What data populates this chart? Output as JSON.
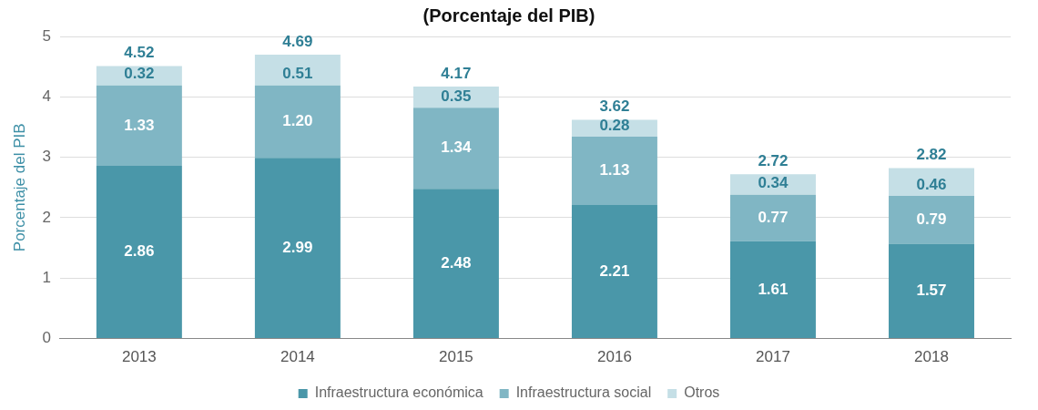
{
  "chart_data": {
    "type": "bar",
    "title": "(Porcentaje del PIB)",
    "ylabel": "Porcentaje del PIB",
    "categories": [
      "2013",
      "2014",
      "2015",
      "2016",
      "2017",
      "2018"
    ],
    "series": [
      {
        "name": "Infraestructura económica",
        "color": "#4a97a9",
        "values": [
          2.86,
          2.99,
          2.48,
          2.21,
          1.61,
          1.57
        ],
        "value_labels": [
          "2.86",
          "2.99",
          "2.48",
          "2.21",
          "1.61",
          "1.57"
        ]
      },
      {
        "name": "Infraestructura social",
        "color": "#80b6c4",
        "values": [
          1.33,
          1.2,
          1.34,
          1.13,
          0.77,
          0.79
        ],
        "value_labels": [
          "1.33",
          "1.20",
          "1.34",
          "1.13",
          "0.77",
          "0.79"
        ]
      },
      {
        "name": "Otros",
        "color": "#c5dfe6",
        "values": [
          0.32,
          0.51,
          0.35,
          0.28,
          0.34,
          0.46
        ],
        "value_labels": [
          "0.32",
          "0.51",
          "0.35",
          "0.28",
          "0.34",
          "0.46"
        ]
      }
    ],
    "stacked": true,
    "totals": [
      "4.52",
      "4.69",
      "4.17",
      "3.62",
      "2.72",
      "2.82"
    ],
    "ylim": [
      0,
      5
    ],
    "yticks": [
      0,
      1,
      2,
      3,
      4,
      5
    ],
    "grid": "y",
    "legend": "bottom"
  }
}
